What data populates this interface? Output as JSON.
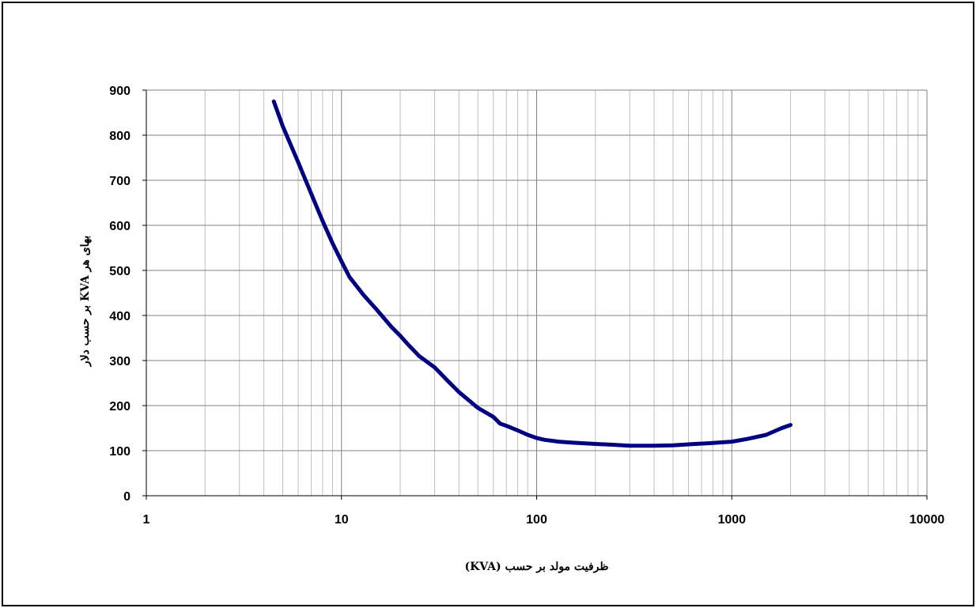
{
  "chart_data": {
    "type": "line",
    "title": "",
    "xlabel": "ظرفیت مولد بر حسب (KVA)",
    "ylabel": "بهای هر KVA بر حسب دلار",
    "x_scale": "log",
    "xlim": [
      1,
      10000
    ],
    "ylim": [
      0,
      900
    ],
    "x_ticks": [
      "1",
      "10",
      "100",
      "1000",
      "10000"
    ],
    "y_ticks": [
      "0",
      "100",
      "200",
      "300",
      "400",
      "500",
      "600",
      "700",
      "800",
      "900"
    ],
    "grid": true,
    "legend": "none",
    "series": [
      {
        "color": "#000080",
        "x": [
          4.5,
          5,
          6,
          7,
          8,
          9,
          10,
          11,
          13,
          15,
          18,
          20,
          22,
          25,
          30,
          35,
          40,
          50,
          60,
          65,
          70,
          80,
          90,
          100,
          110,
          130,
          150,
          200,
          250,
          300,
          400,
          500,
          600,
          800,
          1000,
          1200,
          1500,
          1800,
          2000
        ],
        "y": [
          875,
          820,
          740,
          670,
          610,
          560,
          520,
          485,
          445,
          415,
          375,
          355,
          335,
          310,
          285,
          255,
          230,
          195,
          175,
          160,
          155,
          145,
          135,
          128,
          124,
          120,
          118,
          115,
          113,
          111,
          111,
          112,
          114,
          117,
          120,
          126,
          135,
          150,
          157
        ]
      }
    ]
  }
}
